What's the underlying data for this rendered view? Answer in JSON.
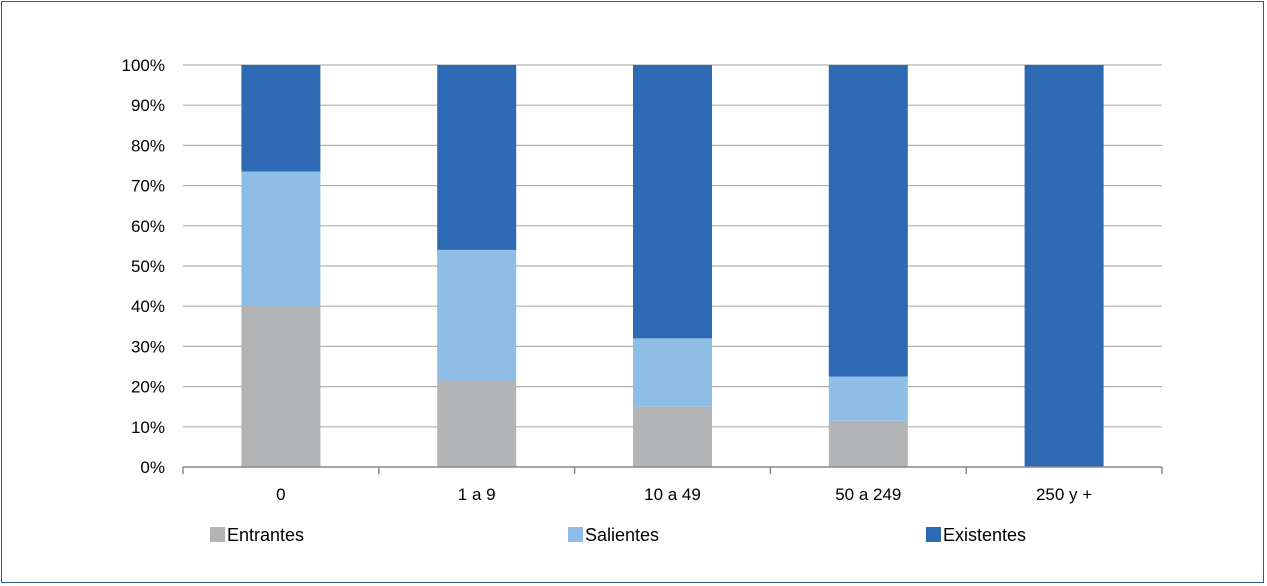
{
  "chart_data": {
    "type": "bar",
    "stacked": true,
    "categories": [
      "0",
      "1 a 9",
      "10 a 49",
      "50 a 249",
      "250 y +"
    ],
    "series": [
      {
        "name": "Entrantes",
        "color": "#b2b4b6",
        "values": [
          40,
          21.5,
          15,
          11.5,
          0
        ]
      },
      {
        "name": "Salientes",
        "color": "#8ebde6",
        "values": [
          33.5,
          32.5,
          17,
          11,
          0
        ]
      },
      {
        "name": "Existentes",
        "color": "#2e6ab3",
        "values": [
          26.5,
          46,
          68,
          77.5,
          100
        ]
      }
    ],
    "yticks": [
      "0%",
      "10%",
      "20%",
      "30%",
      "40%",
      "50%",
      "60%",
      "70%",
      "80%",
      "90%",
      "100%"
    ],
    "ylim": [
      0,
      100
    ],
    "grid": true,
    "legend_position": "bottom",
    "gridline_color": "#b0b0b0",
    "axis_color": "#888888"
  }
}
